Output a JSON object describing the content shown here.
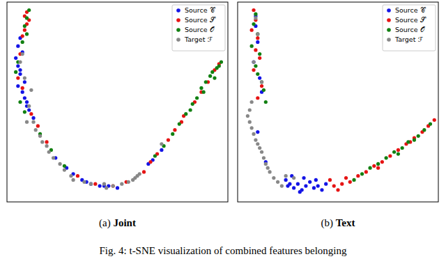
{
  "chart_data": [
    {
      "type": "scatter",
      "title": "(a) Joint",
      "xlim": [
        0,
        100
      ],
      "ylim": [
        0,
        100
      ],
      "tick_labels": false,
      "legend": "upper right",
      "marker": "circle",
      "series": [
        {
          "name": "Source 𝒞",
          "color": "#1414e6",
          "x": [
            6,
            5,
            7,
            4,
            5,
            6,
            8,
            5,
            7,
            9,
            10,
            12,
            8,
            22,
            27,
            30,
            34,
            38,
            42,
            46,
            50,
            36,
            64,
            66,
            70,
            44,
            9,
            6
          ],
          "y": [
            82,
            78,
            75,
            72,
            68,
            64,
            60,
            58,
            55,
            50,
            46,
            42,
            52,
            22,
            17,
            14,
            11,
            9,
            8,
            8,
            7,
            10,
            19,
            21,
            26,
            8,
            48,
            66
          ]
        },
        {
          "name": "Source 𝒮",
          "color": "#e61414",
          "x": [
            9,
            8,
            10,
            9,
            8,
            7,
            6,
            5,
            7,
            11,
            14,
            18,
            32,
            40,
            48,
            54,
            65,
            68,
            73,
            76,
            80,
            85,
            88,
            91,
            94,
            96,
            62,
            79
          ],
          "y": [
            95,
            93,
            91,
            89,
            86,
            83,
            74,
            62,
            57,
            44,
            38,
            30,
            13,
            9,
            8,
            10,
            20,
            24,
            31,
            36,
            43,
            50,
            55,
            60,
            66,
            69,
            15,
            40
          ]
        },
        {
          "name": "Source 𝒪",
          "color": "#128012",
          "x": [
            10,
            9,
            8,
            9,
            7,
            5,
            4,
            6,
            8,
            15,
            20,
            26,
            67,
            71,
            75,
            78,
            81,
            84,
            86,
            88,
            90,
            92,
            93,
            95,
            96,
            97,
            83,
            89,
            94
          ],
          "y": [
            96,
            92,
            88,
            84,
            80,
            70,
            65,
            50,
            45,
            34,
            26,
            18,
            23,
            28,
            34,
            39,
            44,
            49,
            52,
            57,
            60,
            63,
            65,
            67,
            68,
            70,
            46,
            55,
            62
          ]
        },
        {
          "name": "Target ℱ",
          "color": "#888888",
          "x": [
            7,
            6,
            8,
            10,
            12,
            13,
            15,
            16,
            18,
            19,
            21,
            24,
            26,
            29,
            35,
            38,
            44,
            48,
            52,
            55,
            57,
            58,
            59,
            60,
            45,
            30,
            11,
            9,
            70
          ],
          "y": [
            74,
            70,
            62,
            48,
            40,
            36,
            33,
            30,
            28,
            25,
            22,
            19,
            16,
            13,
            10,
            9,
            9,
            8,
            9,
            10,
            11,
            12,
            13,
            14,
            7,
            11,
            56,
            40,
            29
          ]
        }
      ]
    },
    {
      "type": "scatter",
      "title": "(b) Text",
      "xlim": [
        0,
        100
      ],
      "ylim": [
        0,
        100
      ],
      "tick_labels": false,
      "legend": "upper right",
      "marker": "circle",
      "series": [
        {
          "name": "Source 𝒞",
          "color": "#1414e6",
          "x": [
            9,
            10,
            8,
            11,
            12,
            24,
            26,
            28,
            30,
            32,
            34,
            36,
            38,
            40,
            42,
            44,
            27,
            33,
            39,
            25,
            31,
            14,
            10,
            9
          ],
          "y": [
            88,
            80,
            70,
            62,
            55,
            11,
            9,
            7,
            9,
            6,
            8,
            10,
            7,
            8,
            6,
            9,
            13,
            12,
            11,
            8,
            5,
            20,
            35,
            93
          ]
        },
        {
          "name": "Source 𝒮",
          "color": "#e61414",
          "x": [
            8,
            9,
            7,
            10,
            9,
            11,
            8,
            12,
            10,
            48,
            50,
            52,
            46,
            56,
            60,
            64,
            68,
            72,
            76,
            80,
            84,
            88,
            92,
            95,
            98,
            54,
            70,
            86
          ],
          "y": [
            96,
            91,
            86,
            82,
            76,
            72,
            66,
            58,
            52,
            8,
            6,
            9,
            11,
            10,
            13,
            15,
            18,
            20,
            23,
            26,
            29,
            32,
            35,
            38,
            41,
            12,
            17,
            30
          ]
        },
        {
          "name": "Source 𝒪",
          "color": "#128012",
          "x": [
            9,
            8,
            10,
            7,
            11,
            9,
            12,
            10,
            13,
            14,
            62,
            66,
            70,
            74,
            78,
            82,
            85,
            88,
            90,
            93,
            96,
            58,
            80
          ],
          "y": [
            94,
            89,
            84,
            78,
            74,
            68,
            60,
            64,
            56,
            50,
            14,
            17,
            19,
            22,
            25,
            27,
            30,
            31,
            33,
            36,
            39,
            11,
            24
          ]
        },
        {
          "name": "Target ℱ",
          "color": "#888888",
          "x": [
            9,
            8,
            6,
            5,
            6,
            7,
            8,
            9,
            10,
            11,
            12,
            13,
            14,
            15,
            16,
            18,
            20,
            22,
            10,
            12,
            7,
            24,
            28
          ],
          "y": [
            92,
            70,
            46,
            43,
            40,
            37,
            34,
            31,
            29,
            27,
            25,
            22,
            19,
            17,
            15,
            12,
            10,
            8,
            84,
            60,
            50,
            13,
            12
          ]
        }
      ]
    }
  ],
  "caption": "Fig. 4: t-SNE visualization of combined features belonging"
}
